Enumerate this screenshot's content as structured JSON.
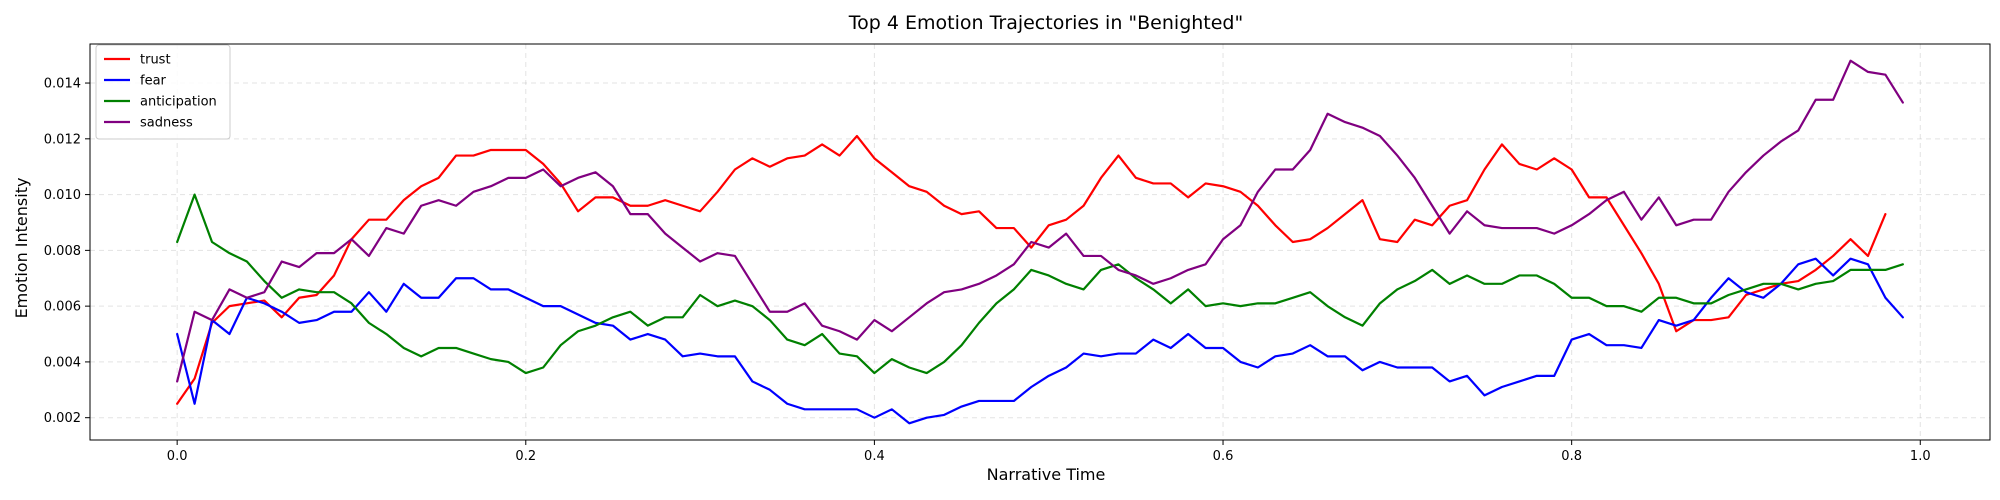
{
  "chart_data": {
    "type": "line",
    "title": "Top 4 Emotion Trajectories in \"Benighted\"",
    "xlabel": "Narrative Time",
    "ylabel": "Emotion Intensity",
    "xlim": [
      -0.05,
      1.04
    ],
    "ylim": [
      0.0012,
      0.0154
    ],
    "xticks": [
      0.0,
      0.2,
      0.4,
      0.6,
      0.8,
      1.0
    ],
    "xtick_labels": [
      "0.0",
      "0.2",
      "0.4",
      "0.6",
      "0.8",
      "1.0"
    ],
    "yticks": [
      0.002,
      0.004,
      0.006,
      0.008,
      0.01,
      0.012,
      0.014
    ],
    "ytick_labels": [
      "0.002",
      "0.004",
      "0.006",
      "0.008",
      "0.010",
      "0.012",
      "0.014"
    ],
    "grid": true,
    "legend_position": "top-left",
    "x_start": 0.0,
    "x_step": 0.01,
    "series": [
      {
        "name": "trust",
        "color": "#ff0000",
        "values": [
          0.0025,
          0.0034,
          0.0054,
          0.006,
          0.0061,
          0.0062,
          0.0056,
          0.0063,
          0.0064,
          0.0071,
          0.0084,
          0.0091,
          0.0091,
          0.0098,
          0.0103,
          0.0106,
          0.0114,
          0.0114,
          0.0116,
          0.0116,
          0.0116,
          0.0111,
          0.0104,
          0.0094,
          0.0099,
          0.0099,
          0.0096,
          0.0096,
          0.0098,
          0.0096,
          0.0094,
          0.0101,
          0.0109,
          0.0113,
          0.011,
          0.0113,
          0.0114,
          0.0118,
          0.0114,
          0.0121,
          0.0113,
          0.0108,
          0.0103,
          0.0101,
          0.0096,
          0.0093,
          0.0094,
          0.0088,
          0.0088,
          0.0081,
          0.0089,
          0.0091,
          0.0096,
          0.0106,
          0.0114,
          0.0106,
          0.0104,
          0.0104,
          0.0099,
          0.0104,
          0.0103,
          0.0101,
          0.0096,
          0.0089,
          0.0083,
          0.0084,
          0.0088,
          0.0093,
          0.0098,
          0.0084,
          0.0083,
          0.0091,
          0.0089,
          0.0096,
          0.0098,
          0.0109,
          0.0118,
          0.0111,
          0.0109,
          0.0113,
          0.0109,
          0.0099,
          0.0099,
          0.0089,
          0.0079,
          0.0068,
          0.0051,
          0.0055,
          0.0055,
          0.0056,
          0.0064,
          0.0066,
          0.0068,
          0.0069,
          0.0073,
          0.0078,
          0.0084,
          0.0078,
          0.0093
        ]
      },
      {
        "name": "fear",
        "color": "#0000ff",
        "values": [
          0.005,
          0.0025,
          0.0055,
          0.005,
          0.0063,
          0.0061,
          0.0058,
          0.0054,
          0.0055,
          0.0058,
          0.0058,
          0.0065,
          0.0058,
          0.0068,
          0.0063,
          0.0063,
          0.007,
          0.007,
          0.0066,
          0.0066,
          0.0063,
          0.006,
          0.006,
          0.0057,
          0.0054,
          0.0053,
          0.0048,
          0.005,
          0.0048,
          0.0042,
          0.0043,
          0.0042,
          0.0042,
          0.0033,
          0.003,
          0.0025,
          0.0023,
          0.0023,
          0.0023,
          0.0023,
          0.002,
          0.0023,
          0.0018,
          0.002,
          0.0021,
          0.0024,
          0.0026,
          0.0026,
          0.0026,
          0.0031,
          0.0035,
          0.0038,
          0.0043,
          0.0042,
          0.0043,
          0.0043,
          0.0048,
          0.0045,
          0.005,
          0.0045,
          0.0045,
          0.004,
          0.0038,
          0.0042,
          0.0043,
          0.0046,
          0.0042,
          0.0042,
          0.0037,
          0.004,
          0.0038,
          0.0038,
          0.0038,
          0.0033,
          0.0035,
          0.0028,
          0.0031,
          0.0033,
          0.0035,
          0.0035,
          0.0048,
          0.005,
          0.0046,
          0.0046,
          0.0045,
          0.0055,
          0.0053,
          0.0055,
          0.0063,
          0.007,
          0.0065,
          0.0063,
          0.0068,
          0.0075,
          0.0077,
          0.0071,
          0.0077,
          0.0075,
          0.0063,
          0.0056
        ]
      },
      {
        "name": "anticipation",
        "color": "#008000",
        "values": [
          0.0083,
          0.01,
          0.0083,
          0.0079,
          0.0076,
          0.0069,
          0.0063,
          0.0066,
          0.0065,
          0.0065,
          0.0061,
          0.0054,
          0.005,
          0.0045,
          0.0042,
          0.0045,
          0.0045,
          0.0043,
          0.0041,
          0.004,
          0.0036,
          0.0038,
          0.0046,
          0.0051,
          0.0053,
          0.0056,
          0.0058,
          0.0053,
          0.0056,
          0.0056,
          0.0064,
          0.006,
          0.0062,
          0.006,
          0.0055,
          0.0048,
          0.0046,
          0.005,
          0.0043,
          0.0042,
          0.0036,
          0.0041,
          0.0038,
          0.0036,
          0.004,
          0.0046,
          0.0054,
          0.0061,
          0.0066,
          0.0073,
          0.0071,
          0.0068,
          0.0066,
          0.0073,
          0.0075,
          0.007,
          0.0066,
          0.0061,
          0.0066,
          0.006,
          0.0061,
          0.006,
          0.0061,
          0.0061,
          0.0063,
          0.0065,
          0.006,
          0.0056,
          0.0053,
          0.0061,
          0.0066,
          0.0069,
          0.0073,
          0.0068,
          0.0071,
          0.0068,
          0.0068,
          0.0071,
          0.0071,
          0.0068,
          0.0063,
          0.0063,
          0.006,
          0.006,
          0.0058,
          0.0063,
          0.0063,
          0.0061,
          0.0061,
          0.0064,
          0.0066,
          0.0068,
          0.0068,
          0.0066,
          0.0068,
          0.0069,
          0.0073,
          0.0073,
          0.0073,
          0.0075
        ]
      },
      {
        "name": "sadness",
        "color": "#800080",
        "values": [
          0.0033,
          0.0058,
          0.0055,
          0.0066,
          0.0063,
          0.0065,
          0.0076,
          0.0074,
          0.0079,
          0.0079,
          0.0084,
          0.0078,
          0.0088,
          0.0086,
          0.0096,
          0.0098,
          0.0096,
          0.0101,
          0.0103,
          0.0106,
          0.0106,
          0.0109,
          0.0103,
          0.0106,
          0.0108,
          0.0103,
          0.0093,
          0.0093,
          0.0086,
          0.0081,
          0.0076,
          0.0079,
          0.0078,
          0.0068,
          0.0058,
          0.0058,
          0.0061,
          0.0053,
          0.0051,
          0.0048,
          0.0055,
          0.0051,
          0.0056,
          0.0061,
          0.0065,
          0.0066,
          0.0068,
          0.0071,
          0.0075,
          0.0083,
          0.0081,
          0.0086,
          0.0078,
          0.0078,
          0.0073,
          0.0071,
          0.0068,
          0.007,
          0.0073,
          0.0075,
          0.0084,
          0.0089,
          0.0101,
          0.0109,
          0.0109,
          0.0116,
          0.0129,
          0.0126,
          0.0124,
          0.0121,
          0.0114,
          0.0106,
          0.0096,
          0.0086,
          0.0094,
          0.0089,
          0.0088,
          0.0088,
          0.0088,
          0.0086,
          0.0089,
          0.0093,
          0.0098,
          0.0101,
          0.0091,
          0.0099,
          0.0089,
          0.0091,
          0.0091,
          0.0101,
          0.0108,
          0.0114,
          0.0119,
          0.0123,
          0.0134,
          0.0134,
          0.0148,
          0.0144,
          0.0143,
          0.0133
        ]
      }
    ]
  }
}
